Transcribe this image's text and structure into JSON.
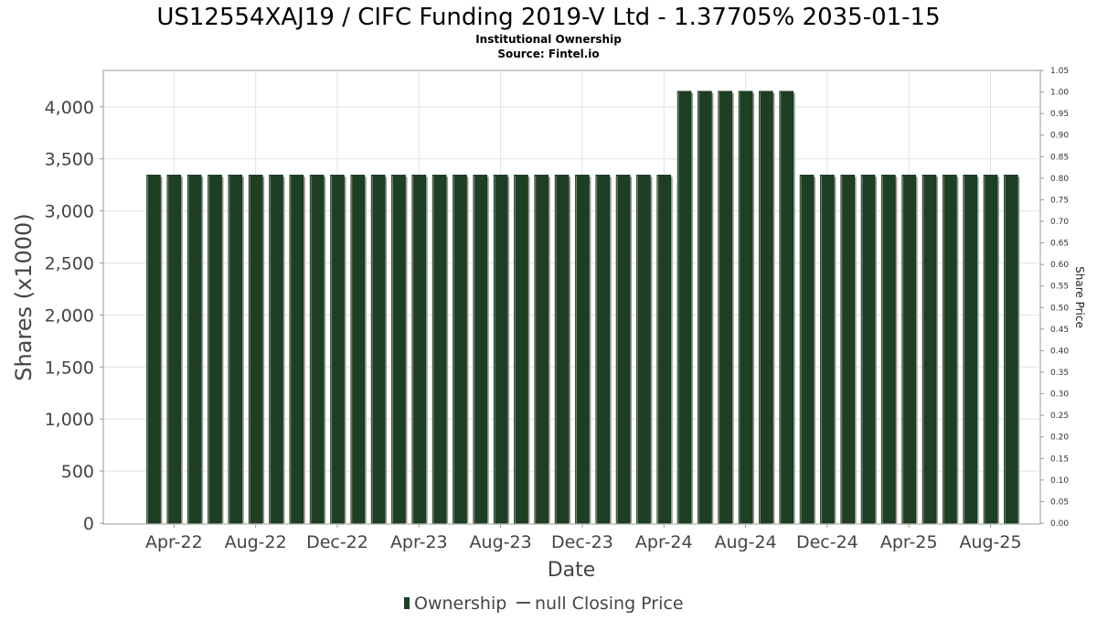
{
  "chart_data": {
    "type": "bar",
    "title": "US12554XAJ19 / CIFC Funding 2019-V Ltd - 1.37705% 2035-01-15",
    "subtitle_1": "Institutional Ownership",
    "subtitle_2": "Source: Fintel.io",
    "xlabel": "Date",
    "ylabel": "Shares (x1000)",
    "y2label": "Share Price",
    "ylim": [
      0,
      4350
    ],
    "y2lim": [
      0,
      1.05
    ],
    "y_ticks": [
      "0",
      "500",
      "1,000",
      "1,500",
      "2,000",
      "2,500",
      "3,000",
      "3,500",
      "4,000"
    ],
    "y_tick_values": [
      0,
      500,
      1000,
      1500,
      2000,
      2500,
      3000,
      3500,
      4000
    ],
    "y2_ticks": [
      "0.00",
      "0.05",
      "0.10",
      "0.15",
      "0.20",
      "0.25",
      "0.30",
      "0.35",
      "0.40",
      "0.45",
      "0.50",
      "0.55",
      "0.60",
      "0.65",
      "0.70",
      "0.75",
      "0.80",
      "0.85",
      "0.90",
      "0.95",
      "1.00",
      "1.05"
    ],
    "y2_tick_values": [
      0,
      0.05,
      0.1,
      0.15,
      0.2,
      0.25,
      0.3,
      0.35,
      0.4,
      0.45,
      0.5,
      0.55,
      0.6,
      0.65,
      0.7,
      0.75,
      0.8,
      0.85,
      0.9,
      0.95,
      1.0,
      1.05
    ],
    "x_ticks": [
      "Apr-22",
      "Aug-22",
      "Dec-22",
      "Apr-23",
      "Aug-23",
      "Dec-23",
      "Apr-24",
      "Aug-24",
      "Dec-24",
      "Apr-25",
      "Aug-25"
    ],
    "x_tick_indices": [
      1,
      5,
      9,
      13,
      17,
      21,
      25,
      29,
      33,
      37,
      41
    ],
    "categories": [
      "Mar-22",
      "Apr-22",
      "May-22",
      "Jun-22",
      "Jul-22",
      "Aug-22",
      "Sep-22",
      "Oct-22",
      "Nov-22",
      "Dec-22",
      "Jan-23",
      "Feb-23",
      "Mar-23",
      "Apr-23",
      "May-23",
      "Jun-23",
      "Jul-23",
      "Aug-23",
      "Sep-23",
      "Oct-23",
      "Nov-23",
      "Dec-23",
      "Jan-24",
      "Feb-24",
      "Mar-24",
      "Apr-24",
      "May-24",
      "Jun-24",
      "Jul-24",
      "Aug-24",
      "Sep-24",
      "Oct-24",
      "Nov-24",
      "Dec-24",
      "Jan-25",
      "Feb-25",
      "Mar-25",
      "Apr-25",
      "May-25",
      "Jun-25",
      "Jul-25",
      "Aug-25",
      "Sep-25"
    ],
    "series": [
      {
        "name": "Ownership",
        "color": "#1e3f24",
        "values": [
          3345,
          3345,
          3345,
          3345,
          3345,
          3345,
          3345,
          3345,
          3345,
          3345,
          3345,
          3345,
          3345,
          3345,
          3345,
          3345,
          3345,
          3345,
          3345,
          3345,
          3345,
          3345,
          3345,
          3345,
          3345,
          3345,
          4150,
          4150,
          4150,
          4150,
          4150,
          4150,
          3345,
          3345,
          3345,
          3345,
          3345,
          3345,
          3345,
          3345,
          3345,
          3345,
          3345
        ]
      }
    ],
    "legend": {
      "placement": "bottom-center",
      "items": [
        {
          "label": "Ownership",
          "kind": "bar",
          "color": "#1e3f24"
        },
        {
          "label": "null Closing Price",
          "kind": "line",
          "color": "#555555"
        }
      ]
    },
    "grid": true
  }
}
